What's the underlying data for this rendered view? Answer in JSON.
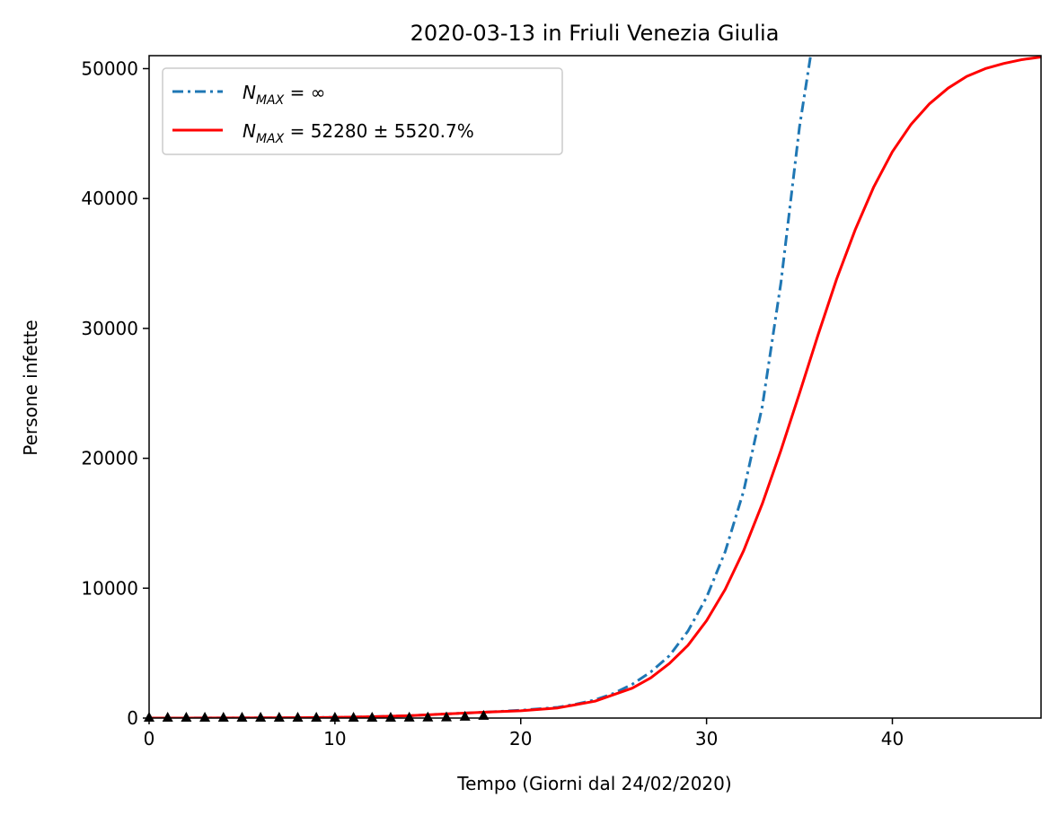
{
  "chart_data": {
    "type": "line",
    "title": "2020-03-13 in Friuli Venezia Giulia",
    "xlabel": "Tempo (Giorni dal 24/02/2020)",
    "ylabel": "Persone infette",
    "xlim": [
      0,
      48
    ],
    "ylim": [
      0,
      51000
    ],
    "xticks": [
      0,
      10,
      20,
      30,
      40
    ],
    "yticks": [
      0,
      10000,
      20000,
      30000,
      40000,
      50000
    ],
    "grid": false,
    "legend_position": "top-left",
    "series": [
      {
        "name": "N_MAX = ∞",
        "legend_label": {
          "N": "N",
          "sub": "MAX",
          "rest": " = ∞"
        },
        "style": "dashdot",
        "color": "#1f77b4",
        "x": [
          0,
          2,
          4,
          6,
          8,
          10,
          12,
          14,
          16,
          18,
          20,
          22,
          23,
          24,
          25,
          26,
          27,
          28,
          29,
          30,
          31,
          32,
          33,
          34,
          35,
          35.6
        ],
        "y": [
          2,
          4,
          8,
          15,
          30,
          55,
          100,
          180,
          320,
          450,
          600,
          830,
          1080,
          1400,
          1900,
          2600,
          3550,
          4800,
          6700,
          9300,
          12800,
          17500,
          24000,
          33500,
          45500,
          51000
        ]
      },
      {
        "name": "N_MAX = 52280 ± 5520.7%",
        "legend_label": {
          "N": "N",
          "sub": "MAX",
          "rest": " = 52280 ± 5520.7%"
        },
        "style": "solid",
        "color": "#ff0000",
        "x": [
          0,
          2,
          4,
          6,
          8,
          10,
          12,
          14,
          16,
          18,
          20,
          22,
          24,
          26,
          27,
          28,
          29,
          30,
          31,
          32,
          33,
          34,
          35,
          36,
          37,
          38,
          39,
          40,
          41,
          42,
          43,
          44,
          45,
          46,
          47,
          48
        ],
        "y": [
          2,
          4,
          8,
          15,
          30,
          55,
          100,
          180,
          320,
          450,
          560,
          780,
          1300,
          2300,
          3100,
          4200,
          5600,
          7500,
          9900,
          12900,
          16500,
          20600,
          25000,
          29500,
          33800,
          37600,
          40900,
          43600,
          45700,
          47300,
          48500,
          49400,
          50000,
          50400,
          50700,
          50900
        ]
      },
      {
        "name": "data",
        "style": "markers",
        "marker": "triangle-up",
        "color": "#000000",
        "x": [
          0,
          1,
          2,
          3,
          4,
          5,
          6,
          7,
          8,
          9,
          10,
          11,
          12,
          13,
          14,
          15,
          16,
          17,
          18
        ],
        "y": [
          0,
          0,
          0,
          0,
          0,
          0,
          0,
          0,
          0,
          0,
          0,
          0,
          0,
          0,
          5,
          18,
          30,
          80,
          150
        ]
      }
    ]
  }
}
